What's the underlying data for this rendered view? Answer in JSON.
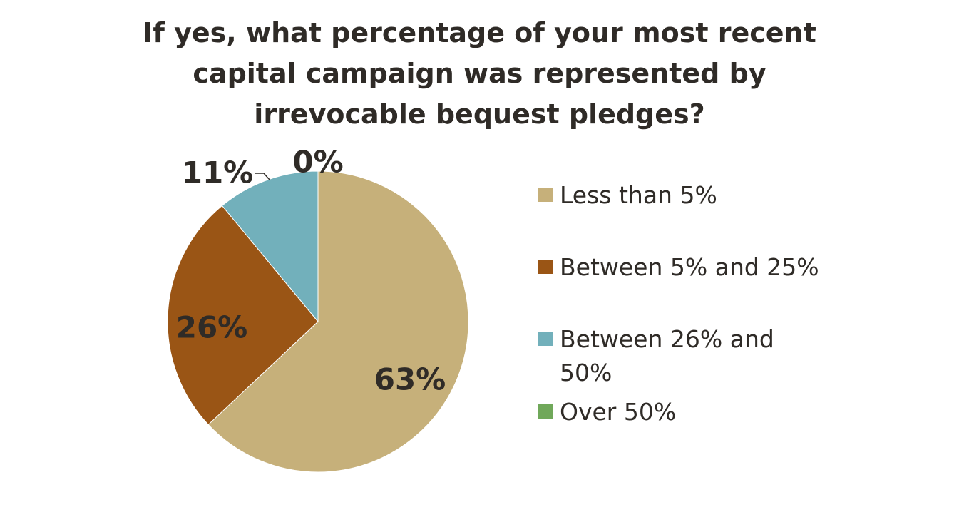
{
  "chart_data": {
    "type": "pie",
    "title": "If yes, what percentage of your most recent capital campaign was represented by irrevocable bequest pledges?",
    "title_lines": [
      "If yes, what percentage of your most recent",
      "capital campaign was represented by",
      "irrevocable bequest pledges?"
    ],
    "categories": [
      "Less than 5%",
      "Between 5% and 25%",
      "Between 26% and 50%",
      "Over 50%"
    ],
    "values": [
      63,
      26,
      11,
      0
    ],
    "data_labels": [
      "63%",
      "26%",
      "11%",
      "0%"
    ],
    "colors": [
      "#C6B07A",
      "#9A5515",
      "#72B0BB",
      "#70A85A"
    ],
    "legend_position": "right",
    "start_angle": "12 o'clock",
    "direction": "clockwise"
  }
}
